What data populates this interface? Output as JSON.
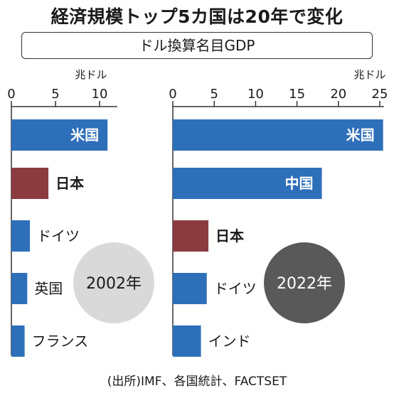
{
  "title": "経済規模トップ5カ国は20年で変化",
  "subtitle": "ドル換算名目GDP",
  "source": "(出所)IMF、各国統計、FACTSET",
  "colors": {
    "us": "#2e6fba",
    "japan": "#8b3a3f",
    "other": "#2e6fba",
    "circle_2002": "#d9d9d9",
    "circle_2022": "#595959"
  },
  "chart_data": [
    {
      "type": "bar",
      "orientation": "horizontal",
      "unit": "兆ドル",
      "xlim": [
        0,
        12
      ],
      "ticks": [
        "0",
        "5",
        "10"
      ],
      "tick_values": [
        0,
        5,
        10
      ],
      "year": "2002年",
      "categories": [
        "米国",
        "日本",
        "ドイツ",
        "英国",
        "フランス"
      ],
      "values": [
        10.9,
        4.2,
        2.1,
        1.8,
        1.5
      ]
    },
    {
      "type": "bar",
      "orientation": "horizontal",
      "unit": "兆ドル",
      "xlim": [
        0,
        25.5
      ],
      "ticks": [
        "0",
        "5",
        "10",
        "15",
        "20",
        "25"
      ],
      "tick_values": [
        0,
        5,
        10,
        15,
        20,
        25
      ],
      "year": "2022年",
      "categories": [
        "米国",
        "中国",
        "日本",
        "ドイツ",
        "インド"
      ],
      "values": [
        25.4,
        18.0,
        4.3,
        4.1,
        3.4
      ]
    }
  ]
}
